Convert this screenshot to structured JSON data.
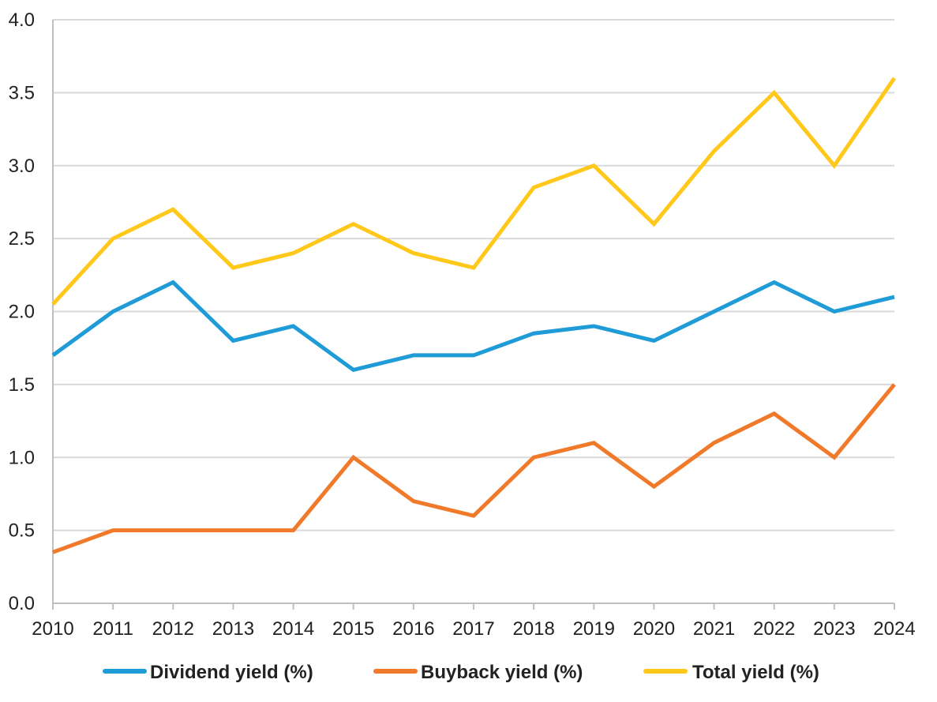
{
  "chart_data": {
    "type": "line",
    "title": "",
    "xlabel": "",
    "ylabel": "",
    "categories": [
      "2010",
      "2011",
      "2012",
      "2013",
      "2014",
      "2015",
      "2016",
      "2017",
      "2018",
      "2019",
      "2020",
      "2021",
      "2022",
      "2023",
      "2024"
    ],
    "ylim": [
      0,
      4.0
    ],
    "yticks": [
      "0.0",
      "0.5",
      "1.0",
      "1.5",
      "2.0",
      "2.5",
      "3.0",
      "3.5",
      "4.0"
    ],
    "grid": true,
    "legend_position": "bottom",
    "series": [
      {
        "name": "Dividend yield (%)",
        "color": "#1f9bd7",
        "values": [
          1.7,
          2.0,
          2.2,
          1.8,
          1.9,
          1.6,
          1.7,
          1.7,
          1.85,
          1.9,
          1.8,
          2.0,
          2.2,
          2.0,
          2.1
        ]
      },
      {
        "name": "Buyback yield (%)",
        "color": "#f07a2a",
        "values": [
          0.35,
          0.5,
          0.5,
          0.5,
          0.5,
          1.0,
          0.7,
          0.6,
          1.0,
          1.1,
          0.8,
          1.1,
          1.3,
          1.0,
          1.5
        ]
      },
      {
        "name": "Total yield (%)",
        "color": "#ffc81a",
        "values": [
          2.05,
          2.5,
          2.7,
          2.3,
          2.4,
          2.6,
          2.4,
          2.3,
          2.85,
          3.0,
          2.6,
          3.1,
          3.5,
          3.0,
          3.6
        ]
      }
    ]
  }
}
